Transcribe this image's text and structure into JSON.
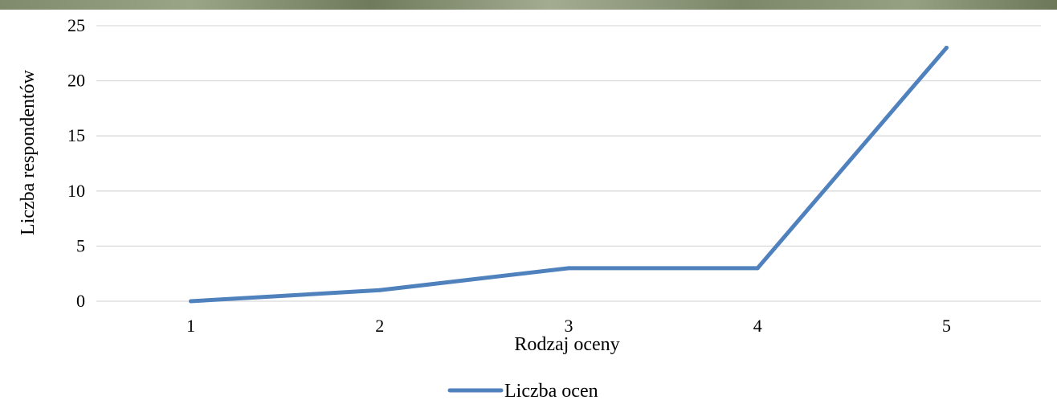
{
  "chart_data": {
    "type": "line",
    "title": "",
    "xlabel": "Rodzaj oceny",
    "ylabel": "Liczba respondentów",
    "categories": [
      "1",
      "2",
      "3",
      "4",
      "5"
    ],
    "series": [
      {
        "name": "Liczba ocen",
        "values": [
          0,
          1,
          3,
          3,
          23
        ],
        "color": "#4f81bd"
      }
    ],
    "ylim": [
      0,
      25
    ],
    "yticks": [
      0,
      5,
      10,
      15,
      20,
      25
    ],
    "grid": true,
    "legend_position": "bottom"
  }
}
